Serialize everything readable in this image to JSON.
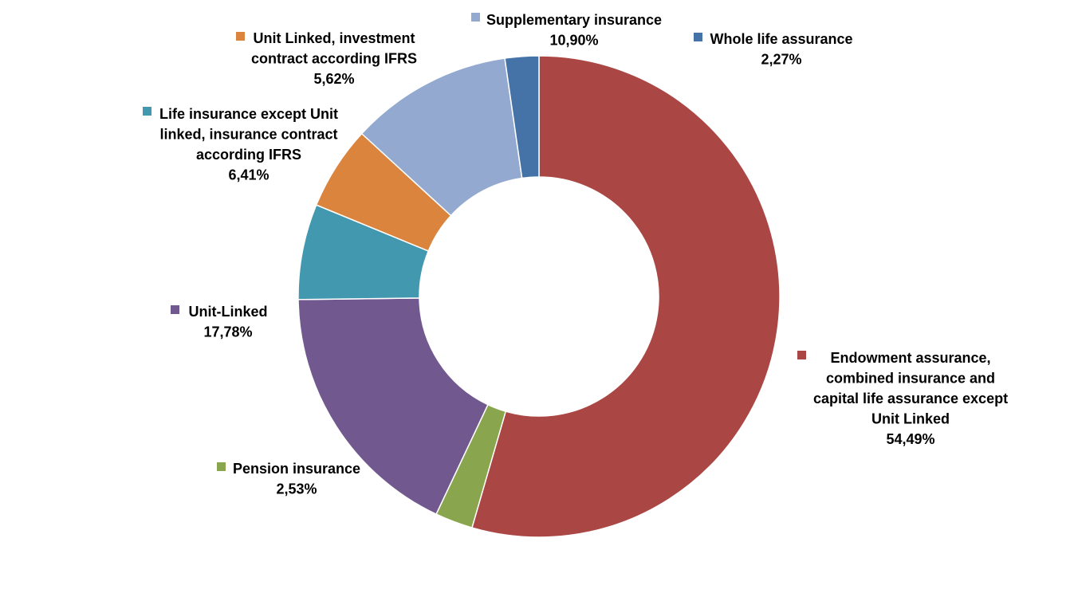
{
  "chart_data": {
    "type": "pie",
    "variant": "doughnut",
    "start": "12 o'clock",
    "direction": "clockwise",
    "slices": [
      {
        "label_lines": [
          "Endowment assurance,",
          "combined insurance and",
          "capital life assurance except",
          "Unit Linked"
        ],
        "value": 54.49,
        "value_label": "54,49%",
        "color": "#AA4643"
      },
      {
        "label_lines": [
          "Pension insurance"
        ],
        "value": 2.53,
        "value_label": "2,53%",
        "color": "#89A54E"
      },
      {
        "label_lines": [
          "Unit-Linked"
        ],
        "value": 17.78,
        "value_label": "17,78%",
        "color": "#71588F"
      },
      {
        "label_lines": [
          "Life insurance except Unit",
          "linked, insurance contract",
          "according IFRS"
        ],
        "value": 6.41,
        "value_label": "6,41%",
        "color": "#4198AF"
      },
      {
        "label_lines": [
          "Unit Linked, investment",
          "contract according IFRS"
        ],
        "value": 5.62,
        "value_label": "5,62%",
        "color": "#DB843D"
      },
      {
        "label_lines": [
          "Supplementary insurance"
        ],
        "value": 10.9,
        "value_label": "10,90%",
        "color": "#93A9CF"
      },
      {
        "label_lines": [
          "Whole life assurance"
        ],
        "value": 2.27,
        "value_label": "2,27%",
        "color": "#4572A7"
      }
    ]
  }
}
